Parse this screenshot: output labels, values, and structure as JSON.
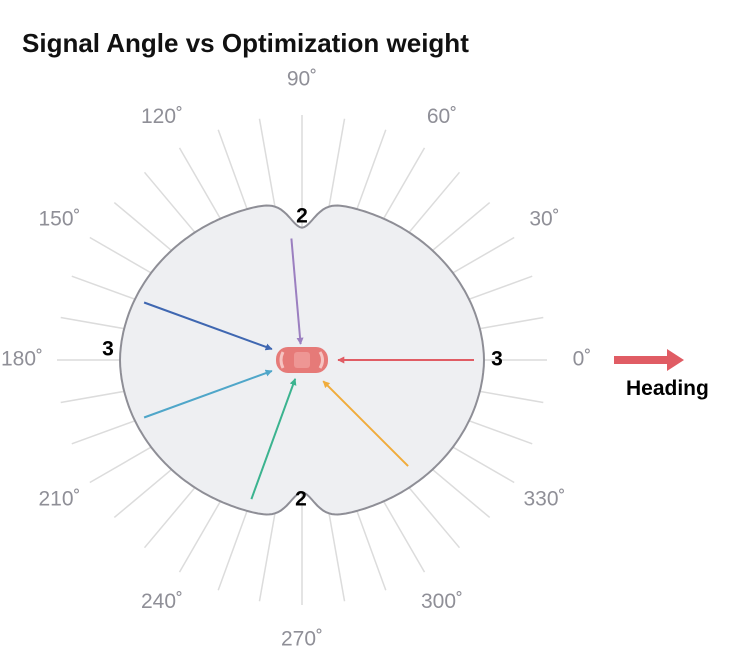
{
  "title": "Signal Angle vs Optimization weight",
  "angle_labels": [
    "0˚",
    "30˚",
    "60˚",
    "90˚",
    "120˚",
    "150˚",
    "180˚",
    "210˚",
    "240˚",
    "270˚",
    "300˚",
    "330˚"
  ],
  "weight_labels": {
    "right": "3",
    "top": "2",
    "left": "3",
    "bottom": "2"
  },
  "heading": {
    "label": "Heading",
    "color": "#e05c64"
  },
  "colors": {
    "region_fill": "#eeeff2",
    "region_stroke": "#8e8e96",
    "spokes": "#dcdcdc",
    "vehicle": "#e67a78",
    "signal_0": "#e05c64",
    "signal_95": "#9b7fc0",
    "signal_160": "#3f67b1",
    "signal_200": "#4fa6c9",
    "signal_250": "#3bb38f",
    "signal_315": "#f0ac3c"
  },
  "chart_data": {
    "type": "polar",
    "title": "Signal Angle vs Optimization weight",
    "angle_ticks_deg": [
      0,
      30,
      60,
      90,
      120,
      150,
      180,
      210,
      240,
      270,
      300,
      330
    ],
    "weights": [
      {
        "angle_deg": 0,
        "weight": 3
      },
      {
        "angle_deg": 90,
        "weight": 2
      },
      {
        "angle_deg": 180,
        "weight": 3
      },
      {
        "angle_deg": 270,
        "weight": 2
      }
    ],
    "signal_arrows": [
      {
        "angle_deg": 0,
        "color": "#e05c64"
      },
      {
        "angle_deg": 95,
        "color": "#9b7fc0"
      },
      {
        "angle_deg": 160,
        "color": "#3f67b1"
      },
      {
        "angle_deg": 200,
        "color": "#4fa6c9"
      },
      {
        "angle_deg": 250,
        "color": "#3bb38f"
      },
      {
        "angle_deg": 315,
        "color": "#f0ac3c"
      }
    ],
    "heading_direction_deg": 0
  }
}
